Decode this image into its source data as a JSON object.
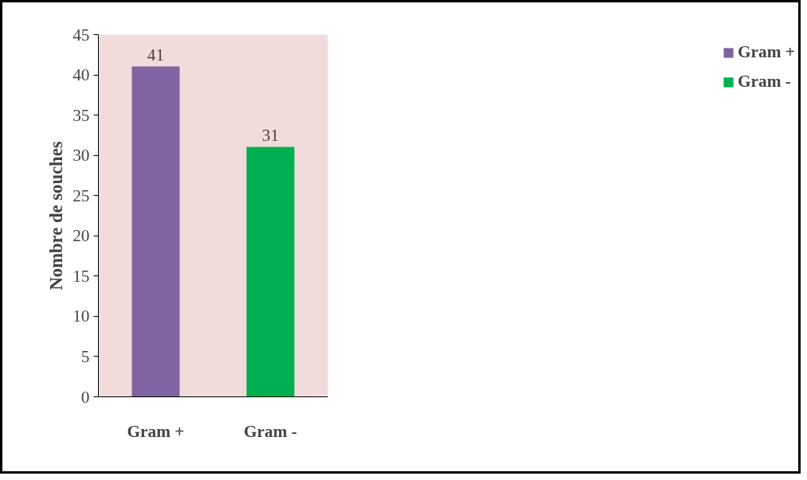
{
  "chart_data": {
    "type": "bar",
    "ylabel": "Nombre de souches",
    "categories": [
      "Gram +",
      "Gram -"
    ],
    "series": [
      {
        "name": "Gram +",
        "color": "#8064a2",
        "values": [
          41,
          null
        ]
      },
      {
        "name": "Gram -",
        "color": "#00b050",
        "values": [
          null,
          31
        ]
      }
    ],
    "ylim": [
      0,
      45
    ],
    "yticks": [
      0,
      5,
      10,
      15,
      20,
      25,
      30,
      35,
      40,
      45
    ],
    "data_labels": true,
    "legend": "right",
    "grid": false
  }
}
